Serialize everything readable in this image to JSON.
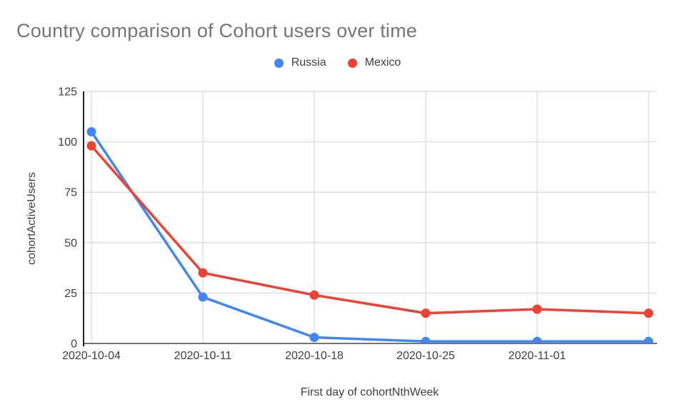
{
  "chart_data": {
    "type": "line",
    "title": "Country comparison of Cohort users over time",
    "xlabel": "First day of cohortNthWeek",
    "ylabel": "cohortActiveUsers",
    "categories": [
      "2020-10-04",
      "2020-10-11",
      "2020-10-18",
      "2020-10-25",
      "2020-11-01",
      ""
    ],
    "series": [
      {
        "name": "Russia",
        "color": "#4285F4",
        "values": [
          105,
          23,
          3,
          1,
          1,
          1
        ]
      },
      {
        "name": "Mexico",
        "color": "#EA4335",
        "values": [
          98,
          35,
          24,
          15,
          17,
          15
        ]
      }
    ],
    "ylim": [
      0,
      125
    ],
    "yticks": [
      0,
      25,
      50,
      75,
      100,
      125
    ],
    "grid": true,
    "legend_position": "top-center",
    "colors": {
      "title_text": "#757575",
      "axis_text": "#3c4043",
      "gridline": "#dadce0",
      "baseline": "#757575",
      "y_axis_line": "#212121"
    }
  }
}
